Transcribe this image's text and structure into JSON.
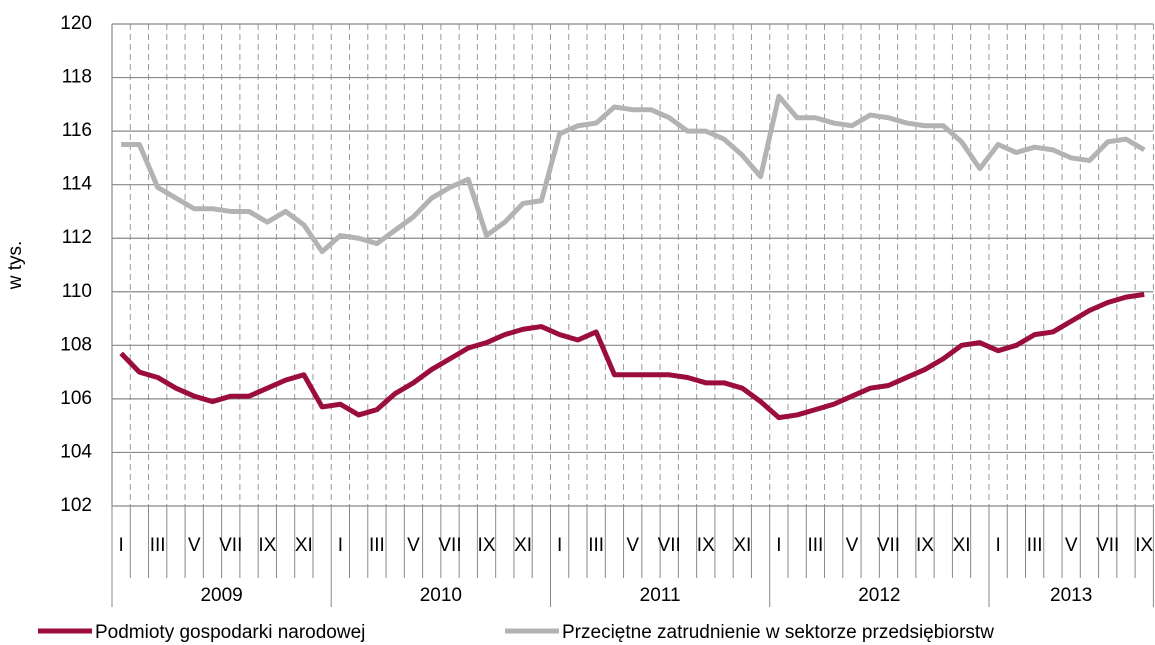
{
  "chart_data": {
    "type": "line",
    "ylabel": "w tys.",
    "categories": [
      "I",
      null,
      "III",
      null,
      "V",
      null,
      "VII",
      null,
      "IX",
      null,
      "XI",
      null,
      "I",
      null,
      "III",
      null,
      "V",
      null,
      "VII",
      null,
      "IX",
      null,
      "XI",
      null,
      "I",
      null,
      "III",
      null,
      "V",
      null,
      "VII",
      null,
      "IX",
      null,
      "XI",
      null,
      "I",
      null,
      "III",
      null,
      "V",
      null,
      "VII",
      null,
      "IX",
      null,
      "XI",
      null,
      "I",
      null,
      "III",
      null,
      "V",
      null,
      "VII",
      null,
      "IX"
    ],
    "year_groups": [
      "2009",
      "2010",
      "2011",
      "2012",
      "2013"
    ],
    "ylim": [
      102,
      120
    ],
    "yticks": [
      102,
      104,
      106,
      108,
      110,
      112,
      114,
      116,
      118,
      120
    ],
    "grid": true,
    "legend": "bottom",
    "series": [
      {
        "name": "Podmioty gospodarki narodowej",
        "color": "#9b0d3c",
        "values": [
          107.7,
          107.0,
          106.8,
          106.4,
          106.1,
          105.9,
          106.1,
          106.1,
          106.4,
          106.7,
          106.9,
          105.7,
          105.8,
          105.4,
          105.6,
          106.2,
          106.6,
          107.1,
          107.5,
          107.9,
          108.1,
          108.4,
          108.6,
          108.7,
          108.4,
          108.2,
          108.5,
          106.9,
          106.9,
          106.9,
          106.9,
          106.8,
          106.6,
          106.6,
          106.4,
          105.9,
          105.3,
          105.4,
          105.6,
          105.8,
          106.1,
          106.4,
          106.5,
          106.8,
          107.1,
          107.5,
          108.0,
          108.1,
          107.8,
          108.0,
          108.4,
          108.5,
          108.9,
          109.3,
          109.6,
          109.8,
          109.9
        ]
      },
      {
        "name": "Przeciętne zatrudnienie w sektorze przedsiębiorstw",
        "color": "#b3b3b3",
        "values": [
          115.5,
          115.5,
          113.9,
          113.5,
          113.1,
          113.1,
          113.0,
          113.0,
          112.6,
          113.0,
          112.5,
          111.5,
          112.1,
          112.0,
          111.8,
          112.3,
          112.8,
          113.5,
          113.9,
          114.2,
          112.1,
          112.6,
          113.3,
          113.4,
          115.9,
          116.2,
          116.3,
          116.9,
          116.8,
          116.8,
          116.5,
          116.0,
          116.0,
          115.7,
          115.1,
          114.3,
          117.3,
          116.5,
          116.5,
          116.3,
          116.2,
          116.6,
          116.5,
          116.3,
          116.2,
          116.2,
          115.6,
          114.6,
          115.5,
          115.2,
          115.4,
          115.3,
          115.0,
          114.9,
          115.6,
          115.7,
          115.3
        ]
      }
    ]
  }
}
